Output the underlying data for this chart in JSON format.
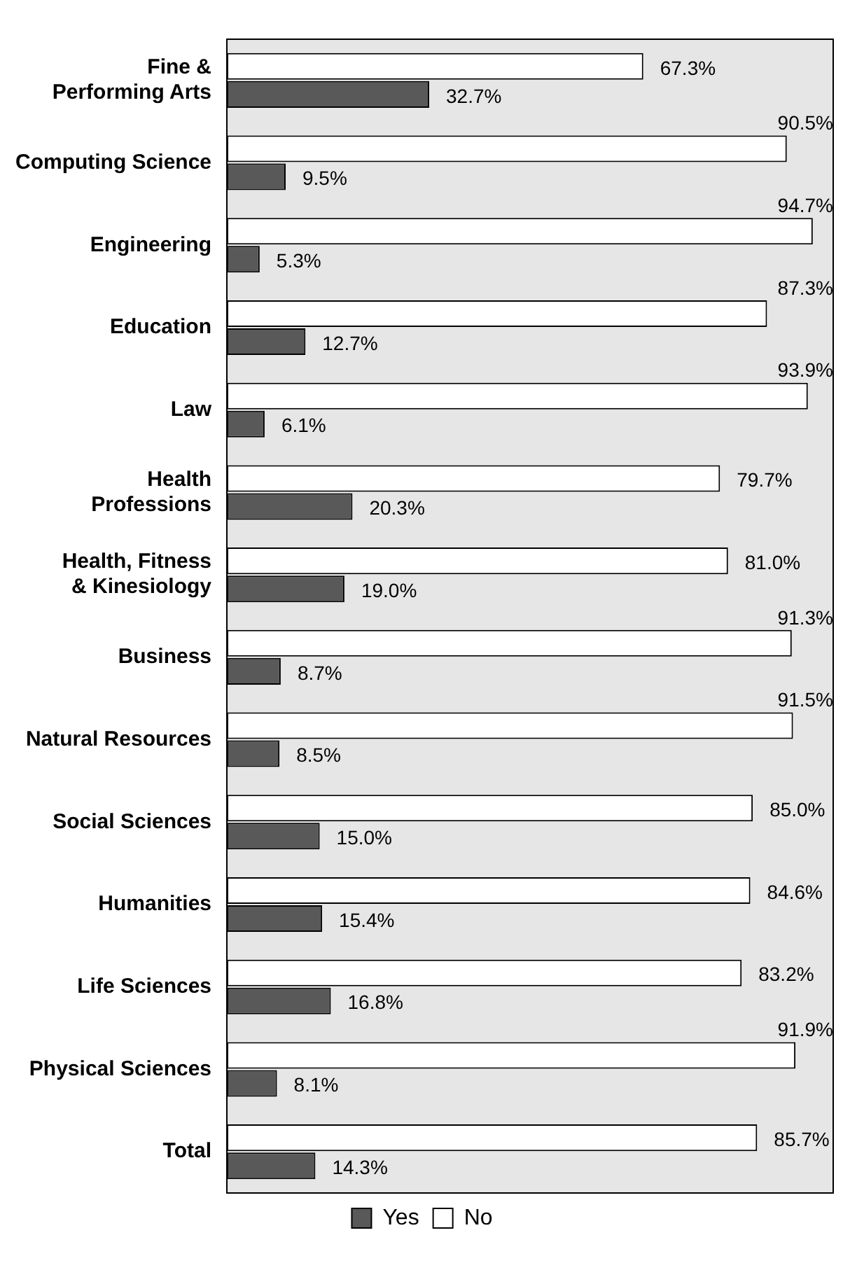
{
  "chart_data": {
    "type": "bar",
    "orientation": "horizontal",
    "categories": [
      "Fine & Performing Arts",
      "Computing Science",
      "Engineering",
      "Education",
      "Law",
      "Health Professions",
      "Health, Fitness & Kinesiology",
      "Business",
      "Natural Resources",
      "Social Sciences",
      "Humanities",
      "Life Sciences",
      "Physical Sciences",
      "Total"
    ],
    "series": [
      {
        "name": "Yes",
        "color": "#595959",
        "values": [
          32.7,
          9.5,
          5.3,
          12.7,
          6.1,
          20.3,
          19.0,
          8.7,
          8.5,
          15.0,
          15.4,
          16.8,
          8.1,
          14.3
        ],
        "value_labels": [
          "32.7%",
          "9.5%",
          "5.3%",
          "12.7%",
          "6.1%",
          "20.3%",
          "19.0%",
          "8.7%",
          "8.5%",
          "15.0%",
          "15.4%",
          "16.8%",
          "8.1%",
          "14.3%"
        ]
      },
      {
        "name": "No",
        "color": "#ffffff",
        "values": [
          67.3,
          90.5,
          94.7,
          87.3,
          93.9,
          79.7,
          81.0,
          91.3,
          91.5,
          85.0,
          84.6,
          83.2,
          91.9,
          85.7
        ],
        "value_labels": [
          "67.3%",
          "90.5%",
          "94.7%",
          "87.3%",
          "93.9%",
          "79.7%",
          "81.0%",
          "91.3%",
          "91.5%",
          "85.0%",
          "84.6%",
          "83.2%",
          "91.9%",
          "85.7%"
        ]
      }
    ],
    "xlim": [
      0,
      98
    ],
    "tick_labels": "y",
    "legend": "bottom"
  }
}
